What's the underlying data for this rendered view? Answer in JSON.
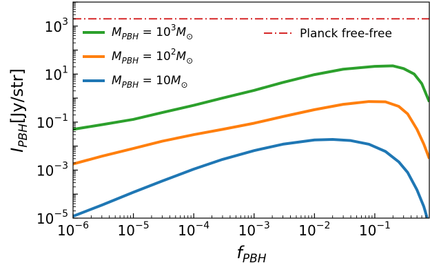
{
  "chart_data": {
    "type": "line",
    "xscale": "log",
    "yscale": "log",
    "xlim": [
      1e-06,
      0.8
    ],
    "ylim": [
      1e-05,
      10000
    ],
    "x_ticks": [
      {
        "value": 1e-06,
        "base": "10",
        "exp": "−6"
      },
      {
        "value": 1e-05,
        "base": "10",
        "exp": "−5"
      },
      {
        "value": 0.0001,
        "base": "10",
        "exp": "−4"
      },
      {
        "value": 0.001,
        "base": "10",
        "exp": "−3"
      },
      {
        "value": 0.01,
        "base": "10",
        "exp": "−2"
      },
      {
        "value": 0.1,
        "base": "10",
        "exp": "−1"
      }
    ],
    "y_ticks": [
      {
        "value": 1e-05,
        "base": "10",
        "exp": "−5"
      },
      {
        "value": 0.001,
        "base": "10",
        "exp": "−3"
      },
      {
        "value": 0.1,
        "base": "10",
        "exp": "−1"
      },
      {
        "value": 10,
        "base": "10",
        "exp": "1"
      },
      {
        "value": 1000,
        "base": "10",
        "exp": "3"
      }
    ],
    "xlabel": {
      "main": "f",
      "sub": "PBH"
    },
    "ylabel": {
      "main": "I",
      "sub": "PBH",
      "suffix": "[Jy/str]"
    },
    "grid": false,
    "legend_placement": "top",
    "reference_line": {
      "name": "Planck free-free",
      "y": 2000,
      "color": "#d62728",
      "style": "dash-dot"
    },
    "series": [
      {
        "name": "M_PBH = 10^3 M_sun",
        "label": {
          "pre": "M",
          "sub": "PBH",
          "mid": " = 10",
          "sup": "3",
          "post": "M",
          "sub2": "⊙"
        },
        "color": "#2ca02c",
        "x": [
          1e-06,
          3e-06,
          1e-05,
          3e-05,
          0.0001,
          0.0003,
          0.001,
          0.003,
          0.01,
          0.03,
          0.1,
          0.2,
          0.3,
          0.45,
          0.6,
          0.8
        ],
        "y": [
          0.05,
          0.078,
          0.13,
          0.25,
          0.5,
          1.0,
          2.1,
          4.5,
          9.5,
          16,
          21,
          22,
          17,
          10,
          4,
          0.7
        ]
      },
      {
        "name": "M_PBH = 10^2 M_sun",
        "label": {
          "pre": "M",
          "sub": "PBH",
          "mid": " = 10",
          "sup": "2",
          "post": "M",
          "sub2": "⊙"
        },
        "color": "#ff7f0e",
        "x": [
          1e-06,
          3e-06,
          1e-05,
          3e-05,
          0.0001,
          0.0003,
          0.001,
          0.003,
          0.01,
          0.03,
          0.08,
          0.15,
          0.25,
          0.35,
          0.5,
          0.65,
          0.8
        ],
        "y": [
          0.0018,
          0.0038,
          0.008,
          0.016,
          0.03,
          0.05,
          0.09,
          0.17,
          0.33,
          0.55,
          0.72,
          0.7,
          0.45,
          0.22,
          0.05,
          0.012,
          0.003
        ]
      },
      {
        "name": "M_PBH = 10 M_sun",
        "label": {
          "pre": "M",
          "sub": "PBH",
          "mid": " = 10",
          "sup": "",
          "post": "M",
          "sub2": "⊙"
        },
        "color": "#1f77b4",
        "x": [
          1e-06,
          3e-06,
          1e-05,
          3e-05,
          0.0001,
          0.0003,
          0.001,
          0.003,
          0.01,
          0.02,
          0.04,
          0.08,
          0.15,
          0.25,
          0.35,
          0.5,
          0.65,
          0.8
        ],
        "y": [
          1.2e-05,
          3.5e-05,
          0.00012,
          0.00035,
          0.0011,
          0.0028,
          0.0065,
          0.012,
          0.018,
          0.019,
          0.017,
          0.012,
          0.006,
          0.0022,
          0.0008,
          0.00015,
          3e-05,
          5e-06
        ]
      }
    ]
  }
}
